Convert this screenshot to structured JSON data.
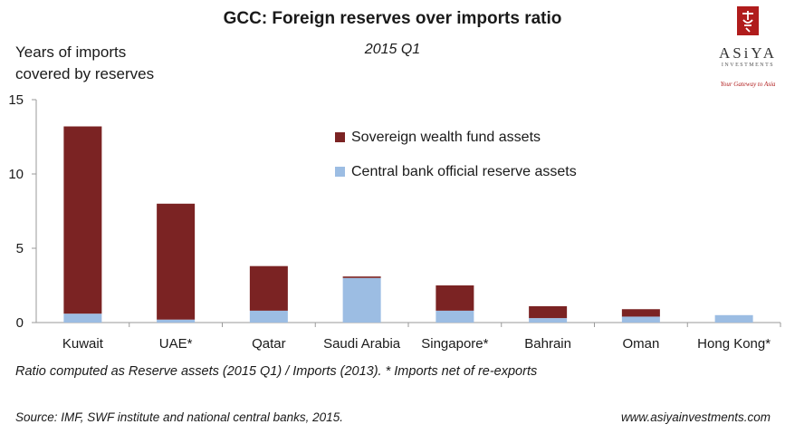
{
  "header": {
    "title": "GCC: Foreign reserves over imports ratio",
    "subtitle": "2015 Q1",
    "ylabel_line1": "Years of imports",
    "ylabel_line2": "covered by reserves"
  },
  "logo": {
    "name": "ASiYA",
    "sub": "INVESTMENTS",
    "tagline": "Your Gateway to Asia"
  },
  "footer": {
    "note": "Ratio computed as Reserve assets (2015 Q1) /  Imports (2013). * Imports net of re-exports",
    "source": "Source: IMF, SWF institute and national central banks, 2015.",
    "website": "www.asiyainvestments.com"
  },
  "colors": {
    "swf": "#7b2323",
    "central_bank": "#9cbde3",
    "axis": "#9a9a9a",
    "brand_red": "#b01c1c"
  },
  "chart_data": {
    "type": "bar",
    "stacked": true,
    "categories": [
      "Kuwait",
      "UAE*",
      "Qatar",
      "Saudi Arabia",
      "Singapore*",
      "Bahrain",
      "Oman",
      "Hong Kong*"
    ],
    "series": [
      {
        "name": "Central bank official reserve assets",
        "values": [
          0.6,
          0.2,
          0.8,
          3.0,
          0.8,
          0.3,
          0.4,
          0.5
        ]
      },
      {
        "name": "Sovereign wealth fund assets",
        "values": [
          12.6,
          7.8,
          3.0,
          0.1,
          1.7,
          0.8,
          0.5,
          0.0
        ]
      }
    ],
    "legend_order": [
      "Sovereign wealth fund assets",
      "Central bank official reserve assets"
    ],
    "legend_placement": "top-right",
    "title": "GCC: Foreign reserves over imports ratio",
    "subtitle": "2015 Q1",
    "ylabel": "Years of imports covered by reserves",
    "xlabel": "",
    "yticks": [
      0,
      5,
      10,
      15
    ],
    "ylim": [
      0,
      15
    ],
    "grid": false
  }
}
